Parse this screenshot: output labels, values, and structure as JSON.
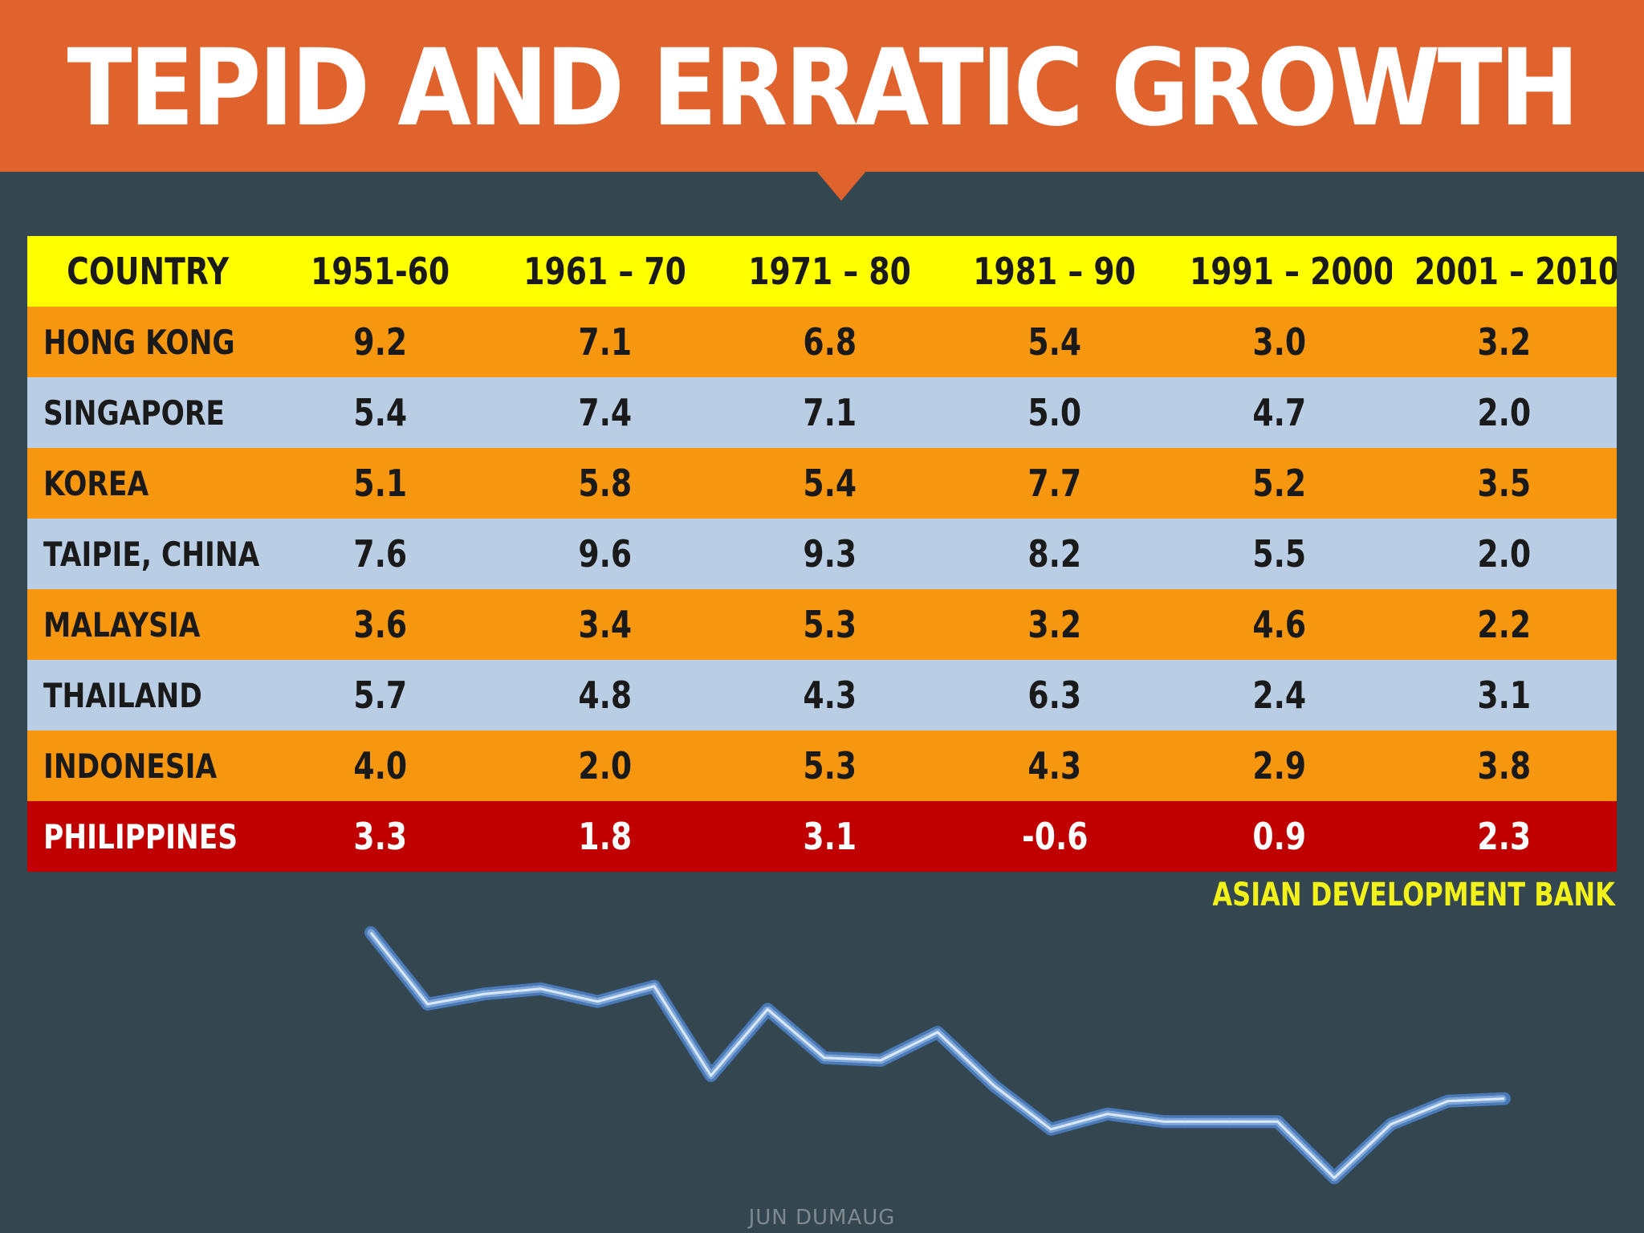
{
  "title": "TEPID AND ERRATIC GROWTH",
  "source": "ASIAN DEVELOPMENT BANK",
  "credit": "JUN DUMAUG",
  "colors": {
    "banner": "#e0622c",
    "background": "#34464f",
    "header_row": "#ffff00",
    "row_orange": "#f7960f",
    "row_blue": "#b9cde4",
    "row_highlight": "#c00000",
    "source_text": "#f2f21a",
    "trend_line": "#7ea7d8"
  },
  "chart_data": {
    "type": "table",
    "columns": [
      "COUNTRY",
      "1951-60",
      "1961 – 70",
      "1971 – 80",
      "1981 – 90",
      "1991 – 2000",
      "2001 – 2010"
    ],
    "rows": [
      {
        "country": "HONG KONG",
        "values": [
          "9.2",
          "7.1",
          "6.8",
          "5.4",
          "3.0",
          "3.2"
        ],
        "style": "orange"
      },
      {
        "country": "SINGAPORE",
        "values": [
          "5.4",
          "7.4",
          "7.1",
          "5.0",
          "4.7",
          "2.0"
        ],
        "style": "blue"
      },
      {
        "country": "KOREA",
        "values": [
          "5.1",
          "5.8",
          "5.4",
          "7.7",
          "5.2",
          "3.5"
        ],
        "style": "orange"
      },
      {
        "country": "TAIPIE, CHINA",
        "values": [
          "7.6",
          "9.6",
          "9.3",
          "8.2",
          "5.5",
          "2.0"
        ],
        "style": "blue"
      },
      {
        "country": "MALAYSIA",
        "values": [
          "3.6",
          "3.4",
          "5.3",
          "3.2",
          "4.6",
          "2.2"
        ],
        "style": "orange"
      },
      {
        "country": "THAILAND",
        "values": [
          "5.7",
          "4.8",
          "4.3",
          "6.3",
          "2.4",
          "3.1"
        ],
        "style": "blue"
      },
      {
        "country": "INDONESIA",
        "values": [
          "4.0",
          "2.0",
          "5.3",
          "4.3",
          "2.9",
          "3.8"
        ],
        "style": "orange"
      },
      {
        "country": "PHILIPPINES",
        "values": [
          "3.3",
          "1.8",
          "3.1",
          "-0.6",
          "0.9",
          "2.3"
        ],
        "style": "red"
      }
    ],
    "trend_line": {
      "type": "line",
      "x": [
        0,
        1,
        2,
        3,
        4,
        5,
        6,
        7,
        8,
        9,
        10,
        11,
        12,
        13,
        14,
        15,
        16,
        17,
        18,
        19,
        20
      ],
      "y": [
        8.0,
        5.2,
        5.6,
        5.8,
        5.3,
        5.9,
        2.4,
        5.0,
        3.1,
        3.0,
        4.1,
        2.0,
        0.3,
        0.9,
        0.6,
        0.6,
        0.6,
        -1.6,
        0.5,
        1.4,
        1.5
      ],
      "ylim": [
        -2,
        9
      ]
    }
  }
}
